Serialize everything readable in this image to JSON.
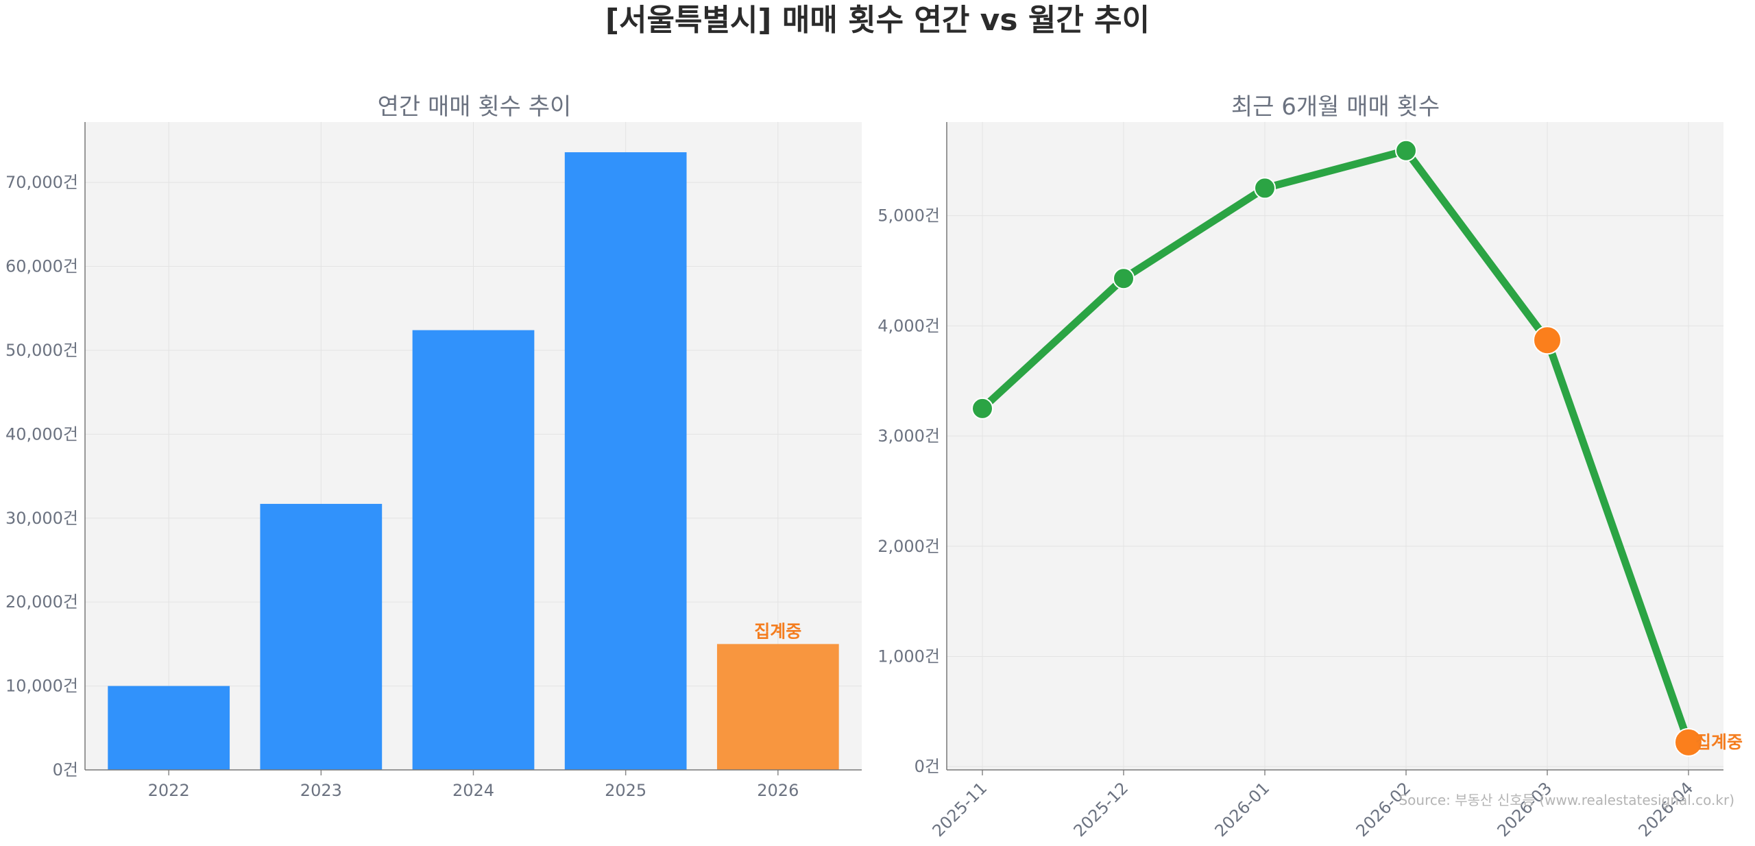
{
  "title": "[서울특별시] 매매 횟수 연간 vs 월간 추이",
  "source": "Source: 부동산 신호등 (www.realestatesignal.co.kr)",
  "colors": {
    "bar": "#3192fb",
    "highlight": "#f8963f",
    "line": "#2ba444",
    "marker_highlight": "#fb7f1c",
    "note": "#f47d1f",
    "plot_bg": "#f3f3f3",
    "grid": "#e3e3e3"
  },
  "chart_data": [
    {
      "type": "bar",
      "title": "연간 매매 횟수 추이",
      "categories": [
        "2022",
        "2023",
        "2024",
        "2025",
        "2026"
      ],
      "values": [
        10000,
        31700,
        52400,
        73600,
        15000
      ],
      "highlight_index": 4,
      "annotation": {
        "index": 4,
        "text": "집계중"
      },
      "ylim": [
        0,
        77200
      ],
      "yticks": [
        0,
        10000,
        20000,
        30000,
        40000,
        50000,
        60000,
        70000
      ],
      "ytick_labels": [
        "0건",
        "10,000건",
        "20,000건",
        "30,000건",
        "40,000건",
        "50,000건",
        "60,000건",
        "70,000건"
      ],
      "grid": true,
      "xlabel": "",
      "ylabel": ""
    },
    {
      "type": "line",
      "title": "최근 6개월 매매 횟수",
      "x": [
        "2025-11",
        "2025-12",
        "2026-01",
        "2026-02",
        "2026-03",
        "2026-04"
      ],
      "values": [
        3250,
        4430,
        5250,
        5590,
        3870,
        220
      ],
      "highlight_indices": [
        4,
        5
      ],
      "annotation": {
        "index": 5,
        "text": "집계중"
      },
      "ylim": [
        -30,
        5850
      ],
      "yticks": [
        0,
        1000,
        2000,
        3000,
        4000,
        5000
      ],
      "ytick_labels": [
        "0건",
        "1,000건",
        "2,000건",
        "3,000건",
        "4,000건",
        "5,000건"
      ],
      "grid": true,
      "xlabel": "",
      "ylabel": ""
    }
  ]
}
